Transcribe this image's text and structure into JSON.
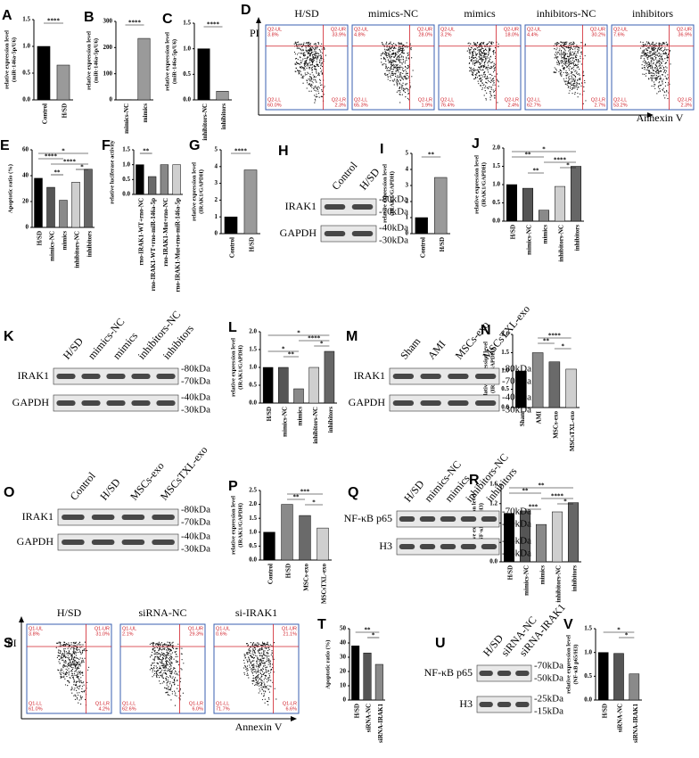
{
  "chart_data": [
    {
      "type": "bar",
      "panel": "A",
      "ylabel": [
        "relative expression level",
        "(miR-146a-5p/U6)"
      ],
      "categories": [
        "Control",
        "H/SD"
      ],
      "values": [
        1.0,
        0.65
      ],
      "colors": [
        "#000000",
        "#9a9a9a"
      ],
      "ylim": [
        0,
        1.5
      ],
      "yticks": [
        {
          "value": 0,
          "label": "0.0"
        },
        0.5,
        {
          "value": 1,
          "label": "1.0"
        },
        1.5
      ],
      "significance": [
        {
          "text": "****",
          "pair": [
            "Control",
            "H/SD"
          ]
        }
      ]
    },
    {
      "type": "bar",
      "panel": "B",
      "ylabel": [
        "relative expression level",
        "(miR-146a-5p/U6)"
      ],
      "categories": [
        "mimics-NC",
        "mimics"
      ],
      "values": [
        1,
        235
      ],
      "colors": [
        "#000000",
        "#9a9a9a"
      ],
      "ylim": [
        0,
        300
      ],
      "yticks": [
        0,
        100,
        200,
        300
      ],
      "significance": [
        {
          "text": "****",
          "pair": [
            "mimics-NC",
            "mimics"
          ]
        }
      ]
    },
    {
      "type": "bar",
      "panel": "C",
      "ylabel": [
        "relative expression level",
        "(miR-146a-5p/U6)"
      ],
      "categories": [
        "inhibitors-NC",
        "inhibitors"
      ],
      "values": [
        1.0,
        0.17
      ],
      "colors": [
        "#000000",
        "#9a9a9a"
      ],
      "ylim": [
        0,
        1.5
      ],
      "yticks": [
        {
          "value": 0,
          "label": "0.0"
        },
        0.5,
        {
          "value": 1,
          "label": "1.0"
        },
        1.5
      ],
      "significance": [
        {
          "text": "****",
          "pair": [
            "inhibitors-NC",
            "inhibitors"
          ]
        }
      ]
    },
    {
      "type": "bar",
      "panel": "E",
      "ylabel": [
        "Apoptotic ratio (%)"
      ],
      "categories": [
        "H/SD",
        "mimics-NC",
        "mimics",
        "inhibitors-NC",
        "inhibitors"
      ],
      "values": [
        38,
        31,
        21,
        35,
        45
      ],
      "colors": [
        "#000000",
        "#555555",
        "#8a8a8a",
        "#cfcfcf",
        "#666666"
      ],
      "ylim": [
        0,
        60
      ],
      "yticks": [
        0,
        20,
        40,
        60
      ],
      "significance": [
        {
          "text": "*",
          "pair": [
            "H/SD",
            "inhibitors"
          ]
        },
        {
          "text": "****",
          "pair": [
            "H/SD",
            "mimics"
          ]
        },
        {
          "text": "****",
          "pair": [
            "mimics-NC",
            "inhibitors"
          ]
        },
        {
          "text": "*",
          "pair": [
            "inhibitors-NC",
            "inhibitors"
          ]
        },
        {
          "text": "**",
          "pair": [
            "mimics-NC",
            "mimics"
          ]
        }
      ]
    },
    {
      "type": "bar",
      "panel": "F",
      "ylabel": [
        "relative luciferase activity"
      ],
      "categories": [
        "rno-IRAK1-WT+rno-NC",
        "rno-IRAK1-WT+rno-miR-146a-5p",
        "rno-IRAK1-Mut+rno-NC",
        "rno-IRAK1-Mut+rno-miR-146a-5p"
      ],
      "values": [
        1.0,
        0.6,
        1.0,
        1.0
      ],
      "colors": [
        "#000000",
        "#6a6a6a",
        "#888888",
        "#cfcfcf"
      ],
      "ylim": [
        0,
        1.5
      ],
      "yticks": [
        {
          "value": 0,
          "label": "0.0"
        },
        0.5,
        {
          "value": 1,
          "label": "1.0"
        },
        1.5
      ],
      "significance": [
        {
          "text": "**",
          "pair": [
            "rno-IRAK1-WT+rno-NC",
            "rno-IRAK1-WT+rno-miR-146a-5p"
          ]
        }
      ]
    },
    {
      "type": "bar",
      "panel": "G",
      "ylabel": [
        "relative expression level",
        "(IRAK1/GAPDH)"
      ],
      "categories": [
        "Control",
        "H/SD"
      ],
      "values": [
        1.0,
        3.8
      ],
      "colors": [
        "#000000",
        "#9a9a9a"
      ],
      "ylim": [
        0,
        5
      ],
      "yticks": [
        0,
        1,
        2,
        3,
        4,
        5
      ],
      "significance": [
        {
          "text": "****",
          "pair": [
            "Control",
            "H/SD"
          ]
        }
      ]
    },
    {
      "type": "bar",
      "panel": "I",
      "ylabel": [
        "relative expression level",
        "(IRAK1/GAPDH)"
      ],
      "categories": [
        "Control",
        "H/SD"
      ],
      "values": [
        1.0,
        3.5
      ],
      "colors": [
        "#000000",
        "#9a9a9a"
      ],
      "ylim": [
        0,
        5
      ],
      "yticks": [
        0,
        1,
        2,
        3,
        4,
        5
      ],
      "significance": [
        {
          "text": "**",
          "pair": [
            "Control",
            "H/SD"
          ]
        }
      ]
    },
    {
      "type": "bar",
      "panel": "J",
      "ylabel": [
        "relative expression level",
        "(IRAK1/GAPDH)"
      ],
      "categories": [
        "H/SD",
        "mimics-NC",
        "mimics",
        "inhibitors-NC",
        "inhibitors"
      ],
      "values": [
        1.0,
        0.9,
        0.3,
        0.95,
        1.5
      ],
      "colors": [
        "#000000",
        "#555555",
        "#8a8a8a",
        "#cfcfcf",
        "#666666"
      ],
      "ylim": [
        0,
        2.0
      ],
      "yticks": [
        {
          "value": 0,
          "label": "0.0"
        },
        0.5,
        {
          "value": 1,
          "label": "1.0"
        },
        1.5,
        {
          "value": 2,
          "label": "2.0"
        }
      ],
      "significance": [
        {
          "text": "*",
          "pair": [
            "H/SD",
            "inhibitors"
          ]
        },
        {
          "text": "**",
          "pair": [
            "H/SD",
            "mimics"
          ]
        },
        {
          "text": "****",
          "pair": [
            "mimics",
            "inhibitors"
          ]
        },
        {
          "text": "*",
          "pair": [
            "inhibitors-NC",
            "inhibitors"
          ]
        },
        {
          "text": "**",
          "pair": [
            "mimics-NC",
            "mimics"
          ]
        }
      ]
    },
    {
      "type": "bar",
      "panel": "L",
      "ylabel": [
        "relative expression level",
        "(IRAK1/GAPDH)"
      ],
      "categories": [
        "H/SD",
        "mimics-NC",
        "mimics",
        "inhibitors-NC",
        "inhibitors"
      ],
      "values": [
        1.0,
        1.0,
        0.4,
        1.0,
        1.45
      ],
      "colors": [
        "#000000",
        "#555555",
        "#8a8a8a",
        "#cfcfcf",
        "#666666"
      ],
      "ylim": [
        0,
        2.0
      ],
      "yticks": [
        {
          "value": 0,
          "label": "0.0"
        },
        0.5,
        {
          "value": 1,
          "label": "1.0"
        },
        1.5,
        {
          "value": 2,
          "label": "2.0"
        }
      ],
      "significance": [
        {
          "text": "*",
          "pair": [
            "H/SD",
            "inhibitors"
          ]
        },
        {
          "text": "****",
          "pair": [
            "mimics",
            "inhibitors"
          ]
        },
        {
          "text": "*",
          "pair": [
            "inhibitors-NC",
            "inhibitors"
          ]
        },
        {
          "text": "*",
          "pair": [
            "H/SD",
            "mimics"
          ]
        },
        {
          "text": "**",
          "pair": [
            "mimics-NC",
            "mimics"
          ]
        }
      ]
    },
    {
      "type": "bar",
      "panel": "N",
      "ylabel": [
        "relative expression level",
        "(IRAK1/GAPDH)"
      ],
      "categories": [
        "Sham",
        "AMI",
        "MSCs-exo",
        "MSCsTXL-exo"
      ],
      "values": [
        1.0,
        1.5,
        1.25,
        1.05
      ],
      "colors": [
        "#000000",
        "#8a8a8a",
        "#6a6a6a",
        "#cfcfcf"
      ],
      "ylim": [
        0,
        2.0
      ],
      "yticks": [
        {
          "value": 0,
          "label": "0.0"
        },
        0.5,
        {
          "value": 1,
          "label": "1.0"
        },
        1.5,
        {
          "value": 2,
          "label": "2.0"
        }
      ],
      "significance": [
        {
          "text": "****",
          "pair": [
            "AMI",
            "MSCsTXL-exo"
          ]
        },
        {
          "text": "**",
          "pair": [
            "AMI",
            "MSCs-exo"
          ]
        },
        {
          "text": "*",
          "pair": [
            "MSCs-exo",
            "MSCsTXL-exo"
          ]
        }
      ]
    },
    {
      "type": "bar",
      "panel": "P",
      "ylabel": [
        "relative expression level",
        "(IRAK1/GAPDH)"
      ],
      "categories": [
        "Control",
        "H/SD",
        "MSCs-exo",
        "MSCsTXL-exo"
      ],
      "values": [
        1.0,
        2.0,
        1.6,
        1.15
      ],
      "colors": [
        "#000000",
        "#8a8a8a",
        "#6a6a6a",
        "#cfcfcf"
      ],
      "ylim": [
        0,
        2.5
      ],
      "yticks": [
        {
          "value": 0,
          "label": "0.0"
        },
        0.5,
        {
          "value": 1,
          "label": "1.0"
        },
        1.5,
        {
          "value": 2,
          "label": "2.0"
        },
        2.5
      ],
      "significance": [
        {
          "text": "***",
          "pair": [
            "H/SD",
            "MSCsTXL-exo"
          ]
        },
        {
          "text": "**",
          "pair": [
            "H/SD",
            "MSCs-exo"
          ]
        },
        {
          "text": "*",
          "pair": [
            "MSCs-exo",
            "MSCsTXL-exo"
          ]
        }
      ]
    },
    {
      "type": "bar",
      "panel": "R",
      "ylabel": [
        "relative expression level",
        "(NF-κB p65/H3)"
      ],
      "categories": [
        "H/SD",
        "mimics-NC",
        "mimics",
        "inhibitors-NC",
        "inhibitors"
      ],
      "values": [
        1.0,
        1.05,
        0.77,
        1.03,
        1.22
      ],
      "colors": [
        "#000000",
        "#555555",
        "#8a8a8a",
        "#cfcfcf",
        "#666666"
      ],
      "ylim": [
        0,
        1.6
      ],
      "yticks": [
        {
          "value": 0,
          "label": "0.0"
        },
        0.4,
        0.8,
        1.2,
        1.6
      ],
      "significance": [
        {
          "text": "**",
          "pair": [
            "H/SD",
            "inhibitors"
          ]
        },
        {
          "text": "**",
          "pair": [
            "H/SD",
            "mimics"
          ]
        },
        {
          "text": "****",
          "pair": [
            "mimics",
            "inhibitors"
          ]
        },
        {
          "text": "*",
          "pair": [
            "inhibitors-NC",
            "inhibitors"
          ]
        },
        {
          "text": "***",
          "pair": [
            "mimics-NC",
            "mimics"
          ]
        }
      ]
    },
    {
      "type": "bar",
      "panel": "T",
      "ylabel": [
        "Apoptotic ratio (%)"
      ],
      "categories": [
        "H/SD",
        "siRNA-NC",
        "siRNA-IRAK1"
      ],
      "values": [
        38,
        33,
        25
      ],
      "colors": [
        "#000000",
        "#555555",
        "#8a8a8a"
      ],
      "ylim": [
        0,
        50
      ],
      "yticks": [
        0,
        10,
        20,
        30,
        40,
        50
      ],
      "significance": [
        {
          "text": "**",
          "pair": [
            "H/SD",
            "siRNA-IRAK1"
          ]
        },
        {
          "text": "*",
          "pair": [
            "siRNA-NC",
            "siRNA-IRAK1"
          ]
        }
      ]
    },
    {
      "type": "bar",
      "panel": "V",
      "ylabel": [
        "relative expression level",
        "(NF-κB p65/H3)"
      ],
      "categories": [
        "H/SD",
        "siRNA-NC",
        "siRNA-IRAK1"
      ],
      "values": [
        1.0,
        0.98,
        0.55
      ],
      "colors": [
        "#000000",
        "#555555",
        "#8a8a8a"
      ],
      "ylim": [
        0,
        1.5
      ],
      "yticks": [
        {
          "value": 0,
          "label": "0.0"
        },
        0.5,
        {
          "value": 1,
          "label": "1.0"
        },
        1.5
      ],
      "significance": [
        {
          "text": "*",
          "pair": [
            "H/SD",
            "siRNA-IRAK1"
          ]
        },
        {
          "text": "*",
          "pair": [
            "siRNA-NC",
            "siRNA-IRAK1"
          ]
        }
      ]
    }
  ],
  "blots": [
    {
      "panel": "H",
      "lanes": [
        "Control",
        "H/SD"
      ],
      "rows": [
        "IRAK1",
        "GAPDH"
      ],
      "markers": [
        "-80kDa",
        "-70kDa",
        "-40kDa",
        "-30kDa"
      ]
    },
    {
      "panel": "K",
      "lanes": [
        "H/SD",
        "mimics-NC",
        "mimics",
        "inhibitors-NC",
        "inhibitors"
      ],
      "rows": [
        "IRAK1",
        "GAPDH"
      ],
      "markers": [
        "-80kDa",
        "-70kDa",
        "-40kDa",
        "-30kDa"
      ]
    },
    {
      "panel": "M",
      "lanes": [
        "Sham",
        "AMI",
        "MSCs-exo",
        "MSCsTXL-exo"
      ],
      "rows": [
        "IRAK1",
        "GAPDH"
      ],
      "markers": [
        "-80kDa",
        "-70kDa",
        "-40kDa",
        "-30kDa"
      ]
    },
    {
      "panel": "O",
      "lanes": [
        "Control",
        "H/SD",
        "MSCs-exo",
        "MSCsTXL-exo"
      ],
      "rows": [
        "IRAK1",
        "GAPDH"
      ],
      "markers": [
        "-80kDa",
        "-70kDa",
        "-40kDa",
        "-30kDa"
      ]
    },
    {
      "panel": "Q",
      "lanes": [
        "H/SD",
        "mimics-NC",
        "mimics",
        "inhibitors-NC",
        "inhibitors"
      ],
      "rows": [
        "NF-κB p65",
        "H3"
      ],
      "markers": [
        "-70kDa",
        "-50kDa",
        "-25kDa",
        "-15kDa"
      ]
    },
    {
      "panel": "U",
      "lanes": [
        "H/SD",
        "siRNA-NC",
        "siRNA-IRAK1"
      ],
      "rows": [
        "NF-κB p65",
        "H3"
      ],
      "markers": [
        "-70kDa",
        "-50kDa",
        "-25kDa",
        "-15kDa"
      ]
    }
  ],
  "flows": [
    {
      "panel": "D",
      "ylabel": "PI",
      "xlabel": "Annexin V",
      "plots": [
        {
          "title": "H/SD",
          "quadrants": [
            {
              "name": "Q2-UL",
              "value": "3.8%"
            },
            {
              "name": "Q2-UR",
              "value": "33.9%"
            },
            {
              "name": "Q2-LL",
              "value": "60.0%"
            },
            {
              "name": "Q2-LR",
              "value": "2.3%"
            }
          ]
        },
        {
          "title": "mimics-NC",
          "quadrants": [
            {
              "name": "Q2-UL",
              "value": "4.8%"
            },
            {
              "name": "Q2-UR",
              "value": "28.0%"
            },
            {
              "name": "Q2-LL",
              "value": "65.3%"
            },
            {
              "name": "Q2-LR",
              "value": "1.9%"
            }
          ]
        },
        {
          "title": "mimics",
          "quadrants": [
            {
              "name": "Q2-UL",
              "value": "3.2%"
            },
            {
              "name": "Q2-UR",
              "value": "18.0%"
            },
            {
              "name": "Q2-LL",
              "value": "76.4%"
            },
            {
              "name": "Q2-LR",
              "value": "2.4%"
            }
          ]
        },
        {
          "title": "inhibitors-NC",
          "quadrants": [
            {
              "name": "Q2-UL",
              "value": "4.4%"
            },
            {
              "name": "Q2-UR",
              "value": "30.2%"
            },
            {
              "name": "Q2-LL",
              "value": "62.7%"
            },
            {
              "name": "Q2-LR",
              "value": "2.7%"
            }
          ]
        },
        {
          "title": "inhibitors",
          "quadrants": [
            {
              "name": "Q2-UL",
              "value": "7.6%"
            },
            {
              "name": "Q2-UR",
              "value": "36.9%"
            },
            {
              "name": "Q2-LL",
              "value": "53.2%"
            },
            {
              "name": "Q2-LR",
              "value": "2.3%"
            }
          ]
        }
      ]
    },
    {
      "panel": "S",
      "ylabel": "PI",
      "xlabel": "Annexin V",
      "plots": [
        {
          "title": "H/SD",
          "quadrants": [
            {
              "name": "Q1-UL",
              "value": "3.8%"
            },
            {
              "name": "Q1-UR",
              "value": "31.0%"
            },
            {
              "name": "Q1-LL",
              "value": "61.0%"
            },
            {
              "name": "Q1-LR",
              "value": "4.2%"
            }
          ]
        },
        {
          "title": "siRNA-NC",
          "quadrants": [
            {
              "name": "Q1-UL",
              "value": "2.1%"
            },
            {
              "name": "Q1-UR",
              "value": "29.3%"
            },
            {
              "name": "Q1-LL",
              "value": "62.6%"
            },
            {
              "name": "Q1-LR",
              "value": "6.0%"
            }
          ]
        },
        {
          "title": "si-IRAK1",
          "quadrants": [
            {
              "name": "Q1-UL",
              "value": "0.6%"
            },
            {
              "name": "Q1-UR",
              "value": "21.1%"
            },
            {
              "name": "Q1-LL",
              "value": "71.7%"
            },
            {
              "name": "Q1-LR",
              "value": "6.6%"
            }
          ]
        }
      ]
    }
  ]
}
